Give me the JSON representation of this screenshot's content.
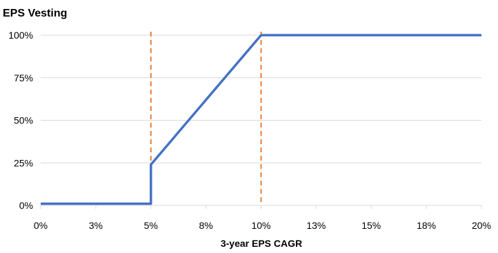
{
  "chart_data": {
    "type": "line",
    "title": "EPS Vesting",
    "xlabel": "3-year EPS CAGR",
    "ylabel": "",
    "xlim": [
      0,
      20
    ],
    "ylim": [
      0,
      100
    ],
    "grid": "horizontal",
    "legend": "none",
    "x_tick_labels": [
      "0%",
      "3%",
      "5%",
      "8%",
      "10%",
      "13%",
      "15%",
      "18%",
      "20%"
    ],
    "y_tick_labels": [
      "0%",
      "25%",
      "50%",
      "75%",
      "100%"
    ],
    "y_ticks": [
      0,
      25,
      50,
      75,
      100
    ],
    "series": [
      {
        "x": [
          0,
          5,
          5,
          10,
          20
        ],
        "y": [
          1,
          1,
          24,
          100,
          100
        ],
        "color": "#4472C4"
      }
    ],
    "reference_lines": [
      {
        "x": 5,
        "color": "#ED7D31",
        "style": "dashed"
      },
      {
        "x": 10,
        "color": "#ED7D31",
        "style": "dashed"
      }
    ]
  }
}
